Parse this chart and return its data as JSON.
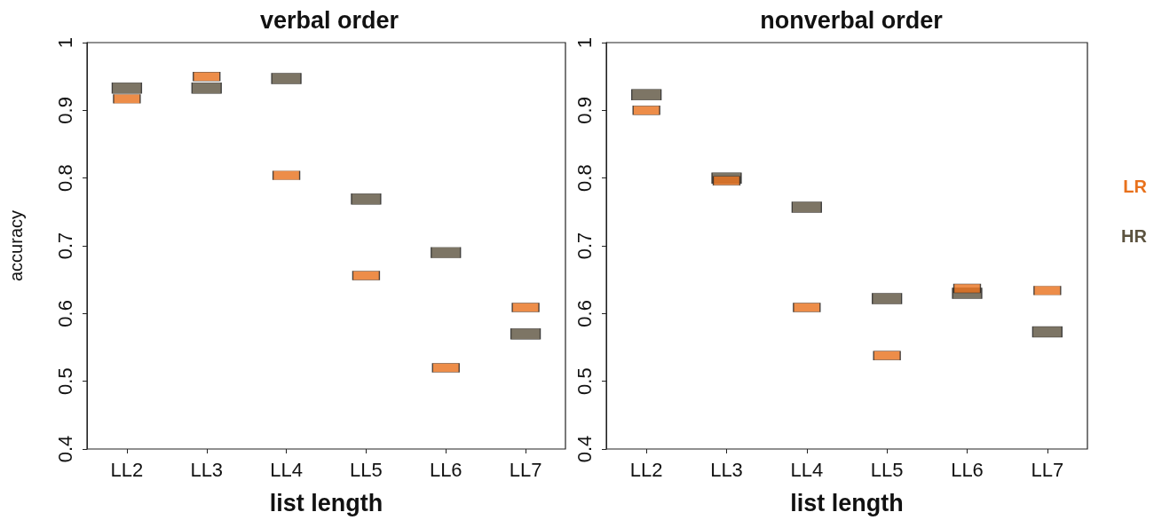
{
  "chart_data": [
    {
      "type": "scatter",
      "title": "verbal order",
      "xlabel": "list length",
      "ylabel": "accuracy",
      "categories": [
        "LL2",
        "LL3",
        "LL4",
        "LL5",
        "LL6",
        "LL7"
      ],
      "marker": "square",
      "grid": false,
      "legend": false,
      "ylim": [
        0.4,
        1.0
      ],
      "yticks": [
        0.4,
        0.5,
        0.6,
        0.7,
        0.8,
        0.9,
        1.0
      ],
      "series": [
        {
          "color": "#5c533f",
          "values": [
            0.933,
            0.933,
            0.947,
            0.769,
            0.69,
            0.57
          ]
        },
        {
          "color": "#e8711c",
          "values": [
            0.917,
            0.95,
            0.804,
            0.656,
            0.52,
            0.609
          ]
        }
      ]
    },
    {
      "type": "scatter",
      "title": "nonverbal order",
      "xlabel": "list length",
      "categories": [
        "LL2",
        "LL3",
        "LL4",
        "LL5",
        "LL6",
        "LL7"
      ],
      "marker": "square",
      "grid": false,
      "legend": false,
      "ylim": [
        0.4,
        1.0
      ],
      "yticks": [
        0.4,
        0.5,
        0.6,
        0.7,
        0.8,
        0.9,
        1.0
      ],
      "series": [
        {
          "name": "HR",
          "color": "#5c533f",
          "values": [
            0.923,
            0.8,
            0.757,
            0.622,
            0.63,
            0.573
          ]
        },
        {
          "name": "LR",
          "color": "#e8711c",
          "values": [
            0.9,
            0.796,
            0.609,
            0.538,
            0.637,
            0.634
          ]
        }
      ]
    }
  ]
}
